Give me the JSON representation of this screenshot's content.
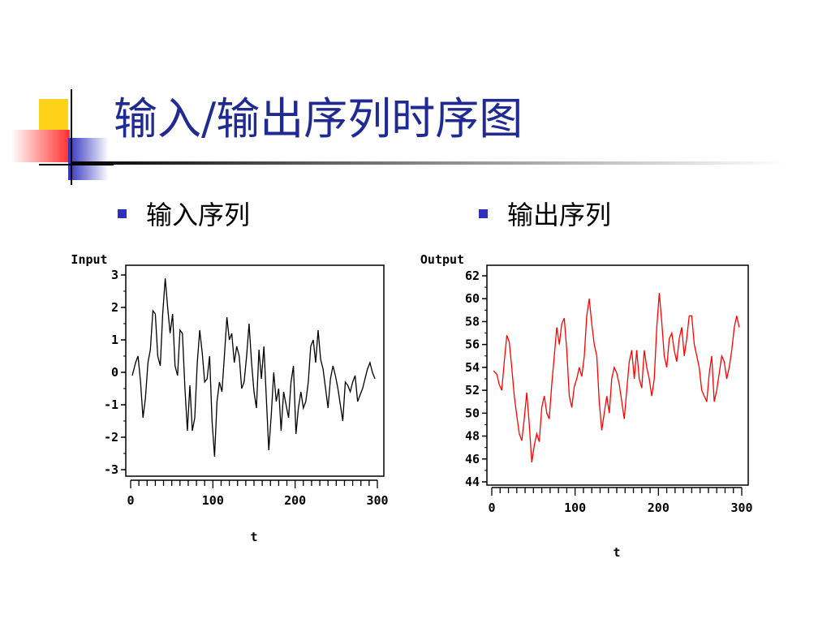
{
  "title": "输入/输出序列时序图",
  "bullets": [
    {
      "label": "输入序列"
    },
    {
      "label": "输出序列"
    }
  ],
  "colors": {
    "title": "#1f2a93",
    "bullet": "#2f2fbe",
    "input_series": "#000000",
    "output_series": "#ff0000",
    "deco_yellow": "#ffd21a",
    "deco_red": "#ff3b3b",
    "deco_blue": "#2f2fbe"
  },
  "chart_data": [
    {
      "type": "line",
      "ylabel": "Input",
      "xlabel": "t",
      "xlim": [
        0,
        300
      ],
      "ylim": [
        -3,
        3
      ],
      "xticks": [
        0,
        100,
        200,
        300
      ],
      "yticks": [
        -3,
        -2,
        -1,
        0,
        1,
        2,
        3
      ],
      "ytick_labels": [
        "-3",
        "-2",
        "-1",
        "0",
        "1",
        "2",
        "3"
      ],
      "grid": false,
      "series": [
        {
          "color": "#000000",
          "x": [
            2,
            6,
            9,
            12,
            15,
            18,
            21,
            24,
            27,
            30,
            33,
            36,
            39,
            42,
            45,
            48,
            51,
            54,
            57,
            60,
            63,
            66,
            69,
            72,
            75,
            78,
            81,
            84,
            87,
            90,
            93,
            96,
            99,
            102,
            105,
            108,
            111,
            114,
            117,
            120,
            123,
            126,
            129,
            132,
            135,
            138,
            141,
            144,
            147,
            150,
            153,
            156,
            159,
            162,
            165,
            168,
            171,
            174,
            177,
            180,
            183,
            186,
            189,
            192,
            195,
            198,
            201,
            204,
            207,
            210,
            213,
            216,
            219,
            222,
            225,
            228,
            231,
            234,
            237,
            240,
            243,
            246,
            249,
            252,
            255,
            258,
            261,
            264,
            267,
            270,
            273,
            276,
            279,
            282,
            285,
            288,
            291,
            294,
            297
          ],
          "y": [
            -0.1,
            0.3,
            0.5,
            -0.3,
            -1.4,
            -0.8,
            0.3,
            0.7,
            1.9,
            1.8,
            0.5,
            0.2,
            1.8,
            2.9,
            2.0,
            1.2,
            1.8,
            0.2,
            -0.1,
            1.3,
            1.2,
            -0.5,
            -1.8,
            -0.4,
            -1.8,
            -1.4,
            0.3,
            1.3,
            0.6,
            -0.3,
            -0.2,
            0.5,
            -1.5,
            -2.6,
            -0.9,
            -0.3,
            -0.6,
            0.5,
            1.7,
            1.0,
            1.2,
            0.3,
            0.8,
            0.5,
            -0.5,
            -0.3,
            0.5,
            1.5,
            0.3,
            -0.6,
            -1.1,
            0.7,
            -0.2,
            0.8,
            -0.8,
            -2.4,
            -1.3,
            0.0,
            -0.9,
            -0.5,
            -1.8,
            -0.6,
            -1.0,
            -1.4,
            -0.3,
            0.2,
            -1.9,
            -1.1,
            -0.6,
            -1.1,
            -0.9,
            -0.3,
            0.8,
            1.0,
            0.3,
            1.3,
            0.4,
            0.1,
            -0.5,
            -1.1,
            -0.2,
            0.2,
            -0.1,
            -0.5,
            -1.0,
            -1.5,
            -0.3,
            -0.4,
            -0.6,
            -0.3,
            -0.1,
            -0.9,
            -0.7,
            -0.5,
            -0.2,
            0.1,
            0.3,
            0.0,
            -0.2
          ]
        }
      ]
    },
    {
      "type": "line",
      "ylabel": "Output",
      "xlabel": "t",
      "xlim": [
        0,
        300
      ],
      "ylim": [
        44,
        62
      ],
      "xticks": [
        0,
        100,
        200,
        300
      ],
      "yticks": [
        44,
        46,
        48,
        50,
        52,
        54,
        56,
        58,
        60,
        62
      ],
      "ytick_labels": [
        "44",
        "46",
        "48",
        "50",
        "52",
        "54",
        "56",
        "58",
        "60",
        "62"
      ],
      "grid": false,
      "series": [
        {
          "color": "#ff0000",
          "x": [
            2,
            6,
            9,
            12,
            15,
            18,
            21,
            24,
            27,
            30,
            33,
            36,
            39,
            42,
            45,
            48,
            51,
            54,
            57,
            60,
            63,
            66,
            69,
            72,
            75,
            78,
            81,
            84,
            87,
            90,
            93,
            96,
            99,
            102,
            105,
            108,
            111,
            114,
            117,
            120,
            123,
            126,
            129,
            132,
            135,
            138,
            141,
            144,
            147,
            150,
            153,
            156,
            159,
            162,
            165,
            168,
            171,
            174,
            177,
            180,
            183,
            186,
            189,
            192,
            195,
            198,
            201,
            204,
            207,
            210,
            213,
            216,
            219,
            222,
            225,
            228,
            231,
            234,
            237,
            240,
            243,
            246,
            249,
            252,
            255,
            258,
            261,
            264,
            267,
            270,
            273,
            276,
            279,
            282,
            285,
            288,
            291,
            294,
            297
          ],
          "y": [
            53.7,
            53.4,
            52.5,
            52.0,
            54.5,
            56.8,
            56.2,
            54.0,
            51.5,
            49.8,
            48.2,
            47.6,
            49.5,
            51.8,
            49.0,
            45.7,
            47.2,
            48.2,
            47.5,
            50.5,
            51.5,
            50.0,
            49.5,
            52.5,
            55.0,
            57.5,
            56.0,
            57.8,
            58.3,
            55.5,
            51.5,
            50.5,
            52.3,
            53.0,
            54.0,
            53.2,
            55.0,
            58.5,
            60.0,
            57.8,
            56.0,
            55.0,
            51.0,
            48.5,
            50.0,
            51.5,
            50.0,
            53.0,
            54.0,
            53.5,
            52.5,
            51.0,
            49.5,
            52.0,
            54.5,
            55.5,
            53.0,
            55.5,
            53.0,
            52.2,
            55.5,
            54.0,
            53.0,
            51.5,
            53.0,
            57.5,
            60.5,
            58.0,
            55.0,
            54.0,
            56.5,
            57.0,
            55.5,
            54.5,
            56.5,
            57.5,
            55.0,
            56.5,
            58.5,
            58.5,
            56.0,
            55.0,
            54.0,
            52.0,
            51.5,
            51.0,
            53.5,
            55.0,
            51.0,
            52.0,
            53.5,
            55.0,
            54.5,
            53.0,
            54.0,
            55.5,
            57.5,
            58.5,
            57.5
          ]
        }
      ]
    }
  ]
}
